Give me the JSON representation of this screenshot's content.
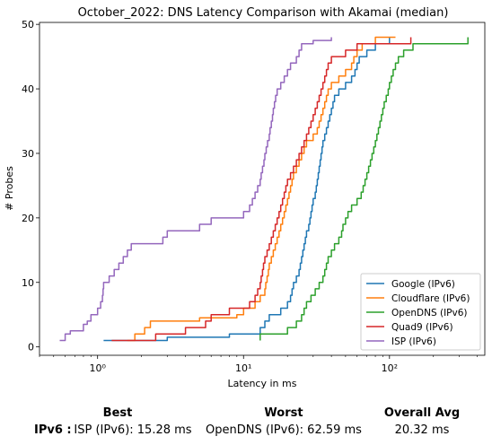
{
  "chart_data": {
    "type": "line",
    "title": "October_2022: DNS Latency Comparison with Akamai (median)",
    "xlabel": "Latency in ms",
    "ylabel": "# Probes",
    "xscale": "log",
    "xlim": [
      0.4,
      450
    ],
    "ylim": [
      -1.3,
      50.3
    ],
    "yticks": [
      0,
      10,
      20,
      30,
      40,
      50
    ],
    "xticks": [
      {
        "value": 1,
        "label": "10⁰"
      },
      {
        "value": 10,
        "label": "10¹"
      },
      {
        "value": 100,
        "label": "10²"
      }
    ],
    "grid": false,
    "legend_position": "lower right",
    "series": [
      {
        "name": "Google (IPv6)",
        "color": "#1f77b4",
        "points": [
          [
            1.1,
            1
          ],
          [
            3,
            1.5
          ],
          [
            8,
            2
          ],
          [
            13,
            3
          ],
          [
            14,
            4
          ],
          [
            15,
            5
          ],
          [
            18,
            6
          ],
          [
            20,
            7
          ],
          [
            21,
            8
          ],
          [
            21.5,
            9
          ],
          [
            22,
            10
          ],
          [
            23,
            11
          ],
          [
            24,
            12
          ],
          [
            24.5,
            13
          ],
          [
            25,
            14
          ],
          [
            25.5,
            15
          ],
          [
            26,
            16
          ],
          [
            26.5,
            17
          ],
          [
            27,
            18
          ],
          [
            28,
            19
          ],
          [
            28.5,
            20
          ],
          [
            29,
            21
          ],
          [
            29.5,
            22
          ],
          [
            30,
            23
          ],
          [
            31,
            24
          ],
          [
            31.5,
            25
          ],
          [
            32,
            26
          ],
          [
            32.5,
            27
          ],
          [
            33,
            28
          ],
          [
            33.5,
            29
          ],
          [
            34,
            30
          ],
          [
            34.5,
            31
          ],
          [
            35,
            32
          ],
          [
            36,
            33
          ],
          [
            37,
            34
          ],
          [
            38,
            35
          ],
          [
            39,
            36
          ],
          [
            40,
            37
          ],
          [
            41,
            38
          ],
          [
            42,
            39
          ],
          [
            45,
            40
          ],
          [
            50,
            41
          ],
          [
            55,
            42
          ],
          [
            58,
            43
          ],
          [
            60,
            44
          ],
          [
            62,
            45
          ],
          [
            70,
            46
          ],
          [
            80,
            47
          ],
          [
            100,
            48
          ]
        ]
      },
      {
        "name": "Cloudflare (IPv6)",
        "color": "#ff7f0e",
        "points": [
          [
            1.6,
            1
          ],
          [
            1.8,
            2
          ],
          [
            2.1,
            3
          ],
          [
            2.3,
            4
          ],
          [
            5,
            4.5
          ],
          [
            9,
            5
          ],
          [
            10,
            6
          ],
          [
            12,
            7
          ],
          [
            13,
            8
          ],
          [
            14,
            9
          ],
          [
            14.2,
            10
          ],
          [
            14.5,
            11
          ],
          [
            14.8,
            12
          ],
          [
            15,
            13
          ],
          [
            15.5,
            14
          ],
          [
            16,
            15
          ],
          [
            16.5,
            16
          ],
          [
            17,
            17
          ],
          [
            17.5,
            18
          ],
          [
            18,
            19
          ],
          [
            18.5,
            20
          ],
          [
            19,
            21
          ],
          [
            19.5,
            22
          ],
          [
            20,
            23
          ],
          [
            20.5,
            24
          ],
          [
            21,
            25
          ],
          [
            21.5,
            26
          ],
          [
            22,
            27
          ],
          [
            23,
            28
          ],
          [
            24,
            29
          ],
          [
            25,
            30
          ],
          [
            26,
            31
          ],
          [
            27,
            32
          ],
          [
            30,
            33
          ],
          [
            32,
            34
          ],
          [
            33,
            35
          ],
          [
            34,
            36
          ],
          [
            35,
            37
          ],
          [
            36,
            38
          ],
          [
            37,
            39
          ],
          [
            38,
            40
          ],
          [
            40,
            41
          ],
          [
            45,
            42
          ],
          [
            50,
            43
          ],
          [
            55,
            44
          ],
          [
            57,
            45
          ],
          [
            60,
            46
          ],
          [
            65,
            47
          ],
          [
            80,
            48
          ],
          [
            110,
            48
          ]
        ]
      },
      {
        "name": "OpenDNS (IPv6)",
        "color": "#2ca02c",
        "points": [
          [
            13,
            1
          ],
          [
            13,
            2
          ],
          [
            20,
            3
          ],
          [
            23,
            4
          ],
          [
            25,
            5
          ],
          [
            26,
            6
          ],
          [
            27,
            7
          ],
          [
            29,
            8
          ],
          [
            31,
            9
          ],
          [
            33,
            10
          ],
          [
            35,
            11
          ],
          [
            36,
            12
          ],
          [
            37,
            13
          ],
          [
            38,
            14
          ],
          [
            40,
            15
          ],
          [
            42,
            16
          ],
          [
            45,
            17
          ],
          [
            47,
            18
          ],
          [
            48,
            19
          ],
          [
            50,
            20
          ],
          [
            52,
            21
          ],
          [
            55,
            22
          ],
          [
            60,
            23
          ],
          [
            64,
            24
          ],
          [
            66,
            25
          ],
          [
            68,
            26
          ],
          [
            70,
            27
          ],
          [
            72,
            28
          ],
          [
            74,
            29
          ],
          [
            76,
            30
          ],
          [
            78,
            31
          ],
          [
            80,
            32
          ],
          [
            82,
            33
          ],
          [
            84,
            34
          ],
          [
            86,
            35
          ],
          [
            88,
            36
          ],
          [
            90,
            37
          ],
          [
            92,
            38
          ],
          [
            95,
            39
          ],
          [
            98,
            40
          ],
          [
            100,
            41
          ],
          [
            103,
            42
          ],
          [
            106,
            43
          ],
          [
            110,
            44
          ],
          [
            115,
            45
          ],
          [
            125,
            46
          ],
          [
            145,
            47
          ],
          [
            345,
            48
          ]
        ]
      },
      {
        "name": "Quad9 (IPv6)",
        "color": "#d62728",
        "points": [
          [
            1.25,
            1
          ],
          [
            2.5,
            2
          ],
          [
            4,
            3
          ],
          [
            5.5,
            4
          ],
          [
            6,
            5
          ],
          [
            8,
            6
          ],
          [
            11,
            7
          ],
          [
            12,
            8
          ],
          [
            12.5,
            9
          ],
          [
            13,
            10
          ],
          [
            13.2,
            11
          ],
          [
            13.5,
            12
          ],
          [
            13.7,
            13
          ],
          [
            14,
            14
          ],
          [
            14.5,
            15
          ],
          [
            15,
            16
          ],
          [
            15.5,
            17
          ],
          [
            16,
            18
          ],
          [
            16.5,
            19
          ],
          [
            17,
            20
          ],
          [
            17.5,
            21
          ],
          [
            18,
            22
          ],
          [
            18.5,
            23
          ],
          [
            19,
            24
          ],
          [
            19.5,
            25
          ],
          [
            20,
            26
          ],
          [
            21,
            27
          ],
          [
            22,
            28
          ],
          [
            23,
            29
          ],
          [
            24,
            30
          ],
          [
            25,
            31
          ],
          [
            26,
            32
          ],
          [
            27,
            33
          ],
          [
            28,
            34
          ],
          [
            29,
            35
          ],
          [
            30,
            36
          ],
          [
            31,
            37
          ],
          [
            32,
            38
          ],
          [
            33,
            39
          ],
          [
            34,
            40
          ],
          [
            35,
            41
          ],
          [
            36,
            42
          ],
          [
            37,
            43
          ],
          [
            38,
            44
          ],
          [
            40,
            45
          ],
          [
            50,
            46
          ],
          [
            60,
            47
          ],
          [
            140,
            48
          ]
        ]
      },
      {
        "name": "ISP (IPv6)",
        "color": "#9467bd",
        "points": [
          [
            0.55,
            1
          ],
          [
            0.6,
            2
          ],
          [
            0.65,
            2.5
          ],
          [
            0.8,
            3.5
          ],
          [
            0.85,
            4
          ],
          [
            0.9,
            5
          ],
          [
            1,
            6
          ],
          [
            1.05,
            7
          ],
          [
            1.08,
            8
          ],
          [
            1.09,
            9
          ],
          [
            1.1,
            10
          ],
          [
            1.2,
            11
          ],
          [
            1.3,
            12
          ],
          [
            1.4,
            13
          ],
          [
            1.5,
            14
          ],
          [
            1.6,
            15
          ],
          [
            1.7,
            16
          ],
          [
            2.8,
            17
          ],
          [
            3,
            18
          ],
          [
            5,
            19
          ],
          [
            6,
            20
          ],
          [
            10,
            21
          ],
          [
            11,
            22
          ],
          [
            11.5,
            23
          ],
          [
            12,
            24
          ],
          [
            12.5,
            25
          ],
          [
            13,
            26
          ],
          [
            13.2,
            27
          ],
          [
            13.5,
            28
          ],
          [
            13.8,
            29
          ],
          [
            14,
            30
          ],
          [
            14.3,
            31
          ],
          [
            14.6,
            32
          ],
          [
            15,
            33
          ],
          [
            15.2,
            34
          ],
          [
            15.5,
            35
          ],
          [
            15.8,
            36
          ],
          [
            16,
            37
          ],
          [
            16.3,
            38
          ],
          [
            16.6,
            39
          ],
          [
            17,
            40
          ],
          [
            18,
            41
          ],
          [
            19,
            42
          ],
          [
            20,
            43
          ],
          [
            21,
            44
          ],
          [
            23,
            45
          ],
          [
            24,
            46
          ],
          [
            25,
            47
          ],
          [
            30,
            47.5
          ],
          [
            40,
            48
          ]
        ]
      }
    ]
  },
  "summary": {
    "headers": {
      "best": "Best",
      "worst": "Worst",
      "overall": "Overall Avg"
    },
    "row_label": "IPv6 :",
    "best": "ISP (IPv6): 15.28 ms",
    "worst": "OpenDNS (IPv6): 62.59 ms",
    "overall": "20.32 ms"
  }
}
